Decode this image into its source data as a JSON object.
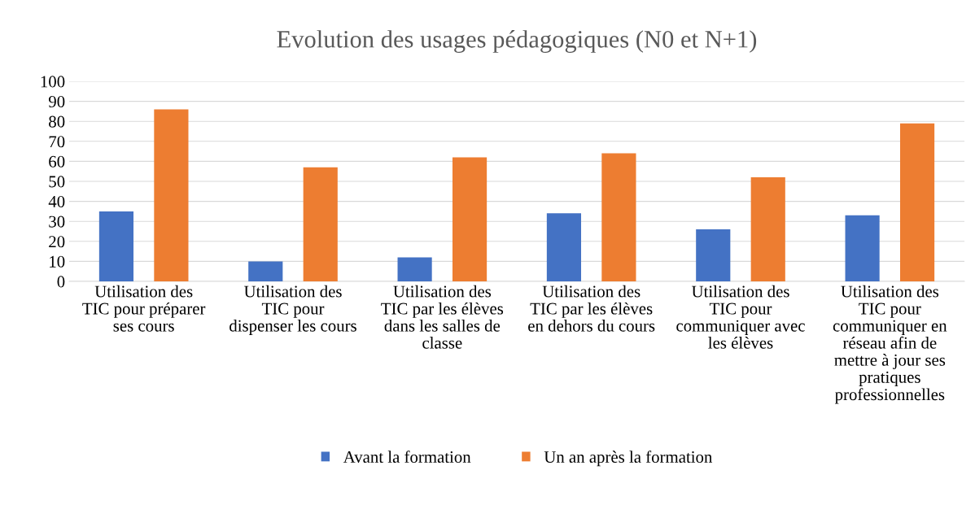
{
  "chart_data": {
    "type": "bar",
    "title": "Evolution des usages pédagogiques (N0 et N+1)",
    "categories": [
      "Utilisation des\nTIC pour préparer\nses cours",
      "Utilisation des\nTIC pour\ndispenser les cours",
      "Utilisation des\nTIC par les élèves\ndans les salles de\nclasse",
      "Utilisation des\nTIC par les élèves\nen dehors du cours",
      "Utilisation des\nTIC pour\ncommuniquer avec\nles élèves",
      "Utilisation des\nTIC pour\ncommuniquer en\nréseau afin de\nmettre à jour ses\npratiques\nprofessionnelles"
    ],
    "series": [
      {
        "name": "Avant la formation",
        "color": "#4472c4",
        "values": [
          35,
          10,
          12,
          34,
          26,
          33
        ]
      },
      {
        "name": "Un an après la formation",
        "color": "#ed7d31",
        "values": [
          86,
          57,
          62,
          64,
          52,
          79
        ]
      }
    ],
    "ylim": [
      0,
      100
    ],
    "yticks": [
      0,
      10,
      20,
      30,
      40,
      50,
      60,
      70,
      80,
      90,
      100
    ],
    "grid": "y",
    "legend": "bottom"
  }
}
